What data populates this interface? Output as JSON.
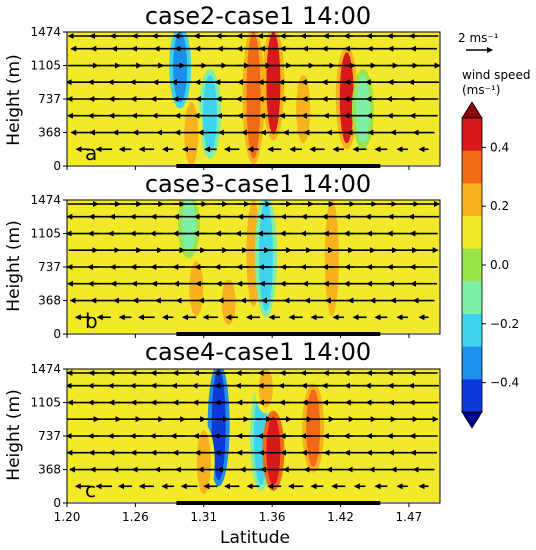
{
  "colors": {
    "background": "#ffffff",
    "arrow": "#000000",
    "levels": [
      "#00008b",
      "#0a3bd9",
      "#1d8fe8",
      "#3ed4f0",
      "#7ef0a8",
      "#9be34a",
      "#f2e92a",
      "#f7b21e",
      "#f06a16",
      "#d7191c",
      "#8b0000"
    ]
  },
  "colorbar": {
    "title_line1": "wind speed",
    "title_line2": "(ms⁻¹)",
    "ticks": [
      "0.4",
      "0.2",
      "0.0",
      "−0.2",
      "−0.4"
    ],
    "tick_values": [
      0.4,
      0.2,
      0.0,
      -0.2,
      -0.4
    ],
    "boundaries": [
      -0.5,
      -0.4,
      -0.3,
      -0.2,
      -0.1,
      0.0,
      0.1,
      0.2,
      0.3,
      0.4,
      0.5
    ],
    "extend": "both"
  },
  "reference_vector": {
    "label": "2 ms⁻¹",
    "magnitude": 2
  },
  "chart_data": [
    {
      "type": "heatmap",
      "title": "case2-case1 14:00",
      "panel_label": "a",
      "xlabel": "",
      "ylabel": "Height (m)",
      "x_ticks": [],
      "y_ticks": [
        "0",
        "368",
        "737",
        "1105",
        "1474"
      ],
      "y_tick_values": [
        0,
        368,
        737,
        1105,
        1474
      ],
      "xlim": [
        1.2,
        1.5
      ],
      "ylim": [
        0,
        1474
      ],
      "background_value": 0.05,
      "features": [
        {
          "center": 1.291,
          "bottom": 700,
          "top": 1474,
          "value": -0.35
        },
        {
          "center": 1.315,
          "bottom": 150,
          "top": 1000,
          "value": -0.3
        },
        {
          "center": 1.35,
          "bottom": 80,
          "top": 1474,
          "value": 0.25
        },
        {
          "center": 1.366,
          "bottom": 350,
          "top": 1474,
          "value": 0.3
        },
        {
          "center": 1.425,
          "bottom": 250,
          "top": 1250,
          "value": 0.3
        },
        {
          "center": 1.438,
          "bottom": 250,
          "top": 1000,
          "value": -0.2
        },
        {
          "center": 1.3,
          "bottom": 0,
          "top": 700,
          "value": 0.15
        },
        {
          "center": 1.39,
          "bottom": 250,
          "top": 1000,
          "value": 0.15
        }
      ],
      "ground_segments": [
        [
          1.288,
          1.452
        ]
      ],
      "vector_rows": [
        {
          "height": 1474,
          "u": [
            -2.2,
            -2.2,
            -2.3,
            -2.2,
            -2.4,
            -2.3,
            -2.5,
            -2.4,
            -2.5,
            -2.6,
            -2.4,
            -2.5,
            -2.3,
            -2.4,
            -2.2,
            -2.3,
            -2.2
          ]
        },
        {
          "height": 1290,
          "u": [
            -1.8,
            -2.0,
            -2.1,
            -2.3,
            -2.1,
            -2.2,
            -2.4,
            -2.2,
            -2.5,
            -2.3,
            -2.4,
            -2.2,
            -2.5,
            -2.3,
            -2.1,
            -2.2,
            -2.0
          ]
        },
        {
          "height": 1105,
          "u": [
            2.3,
            2.4,
            2.4,
            2.5,
            2.5,
            2.6,
            2.4,
            2.6,
            2.6,
            2.5,
            2.7,
            2.6,
            2.5,
            2.4,
            2.5,
            2.3,
            2.4
          ]
        },
        {
          "height": 922,
          "u": [
            -2.5,
            -2.4,
            -2.6,
            -2.5,
            -2.3,
            -2.7,
            -2.4,
            -2.6,
            -2.4,
            -2.5,
            -2.6,
            -2.4,
            -2.5,
            -2.3,
            -2.4,
            -2.2,
            -2.3
          ]
        },
        {
          "height": 737,
          "u": [
            -2.4,
            -2.3,
            -2.5,
            -2.4,
            -2.6,
            -2.5,
            -2.3,
            -2.4,
            -2.6,
            -2.5,
            -2.4,
            -2.3,
            -2.5,
            -2.4,
            -2.3,
            -2.4,
            -2.2
          ]
        },
        {
          "height": 553,
          "u": [
            -2.3,
            -2.4,
            -2.5,
            -2.3,
            -2.4,
            -2.2,
            -2.5,
            -2.3,
            -2.4,
            -2.3,
            -2.5,
            -2.4,
            -2.3,
            -2.4,
            -2.2,
            -2.3,
            -2.1
          ]
        },
        {
          "height": 368,
          "u": [
            -1.8,
            -2.2,
            -1.9,
            -2.1,
            -1.7,
            -2.2,
            -1.9,
            -2.0,
            -1.8,
            -2.1,
            -1.9,
            -2.0,
            -1.8,
            -1.9,
            -2.0,
            -1.8,
            -1.6
          ]
        },
        {
          "height": 184,
          "u": [
            -1.0,
            -1.2,
            -0.9,
            -1.1,
            -0.8,
            -1.0,
            -0.9,
            -1.1,
            -0.8,
            -1.0,
            -0.9,
            -1.1,
            -0.8,
            -1.0,
            -0.9,
            -0.8,
            -0.7
          ]
        }
      ]
    },
    {
      "type": "heatmap",
      "title": "case3-case1 14:00",
      "panel_label": "b",
      "xlabel": "",
      "ylabel": "Height (m)",
      "x_ticks": [],
      "y_ticks": [
        "0",
        "368",
        "737",
        "1105",
        "1474"
      ],
      "y_tick_values": [
        0,
        368,
        737,
        1105,
        1474
      ],
      "xlim": [
        1.2,
        1.5
      ],
      "ylim": [
        0,
        1474
      ],
      "background_value": 0.05,
      "features": [
        {
          "center": 1.298,
          "bottom": 900,
          "top": 1474,
          "value": -0.2
        },
        {
          "center": 1.304,
          "bottom": 200,
          "top": 800,
          "value": 0.15
        },
        {
          "center": 1.35,
          "bottom": 300,
          "top": 1474,
          "value": 0.15
        },
        {
          "center": 1.36,
          "bottom": 250,
          "top": 1474,
          "value": -0.3
        },
        {
          "center": 1.413,
          "bottom": 200,
          "top": 1474,
          "value": 0.15
        },
        {
          "center": 1.33,
          "bottom": 100,
          "top": 600,
          "value": 0.12
        }
      ],
      "ground_segments": [
        [
          1.288,
          1.452
        ]
      ],
      "vector_rows": [
        {
          "height": 1474,
          "u": [
            2.3,
            2.4,
            2.4,
            2.5,
            2.5,
            2.6,
            2.5,
            2.6,
            2.6,
            2.5,
            2.6,
            2.5,
            2.4,
            2.5,
            2.3,
            2.4,
            2.3
          ]
        },
        {
          "height": 1290,
          "u": [
            -2.4,
            -2.3,
            -2.4,
            -2.5,
            -2.6,
            -2.4,
            -2.5,
            -2.6,
            -2.4,
            -2.5,
            -2.3,
            -2.4,
            -2.5,
            -2.3,
            -2.4,
            -2.2,
            -2.3
          ]
        },
        {
          "height": 1105,
          "u": [
            -2.5,
            -2.4,
            -2.6,
            -2.5,
            -2.7,
            -2.5,
            -2.6,
            -2.5,
            -2.7,
            -2.6,
            -2.4,
            -2.5,
            -2.3,
            -2.4,
            -2.2,
            -2.3,
            -2.1
          ]
        },
        {
          "height": 922,
          "u": [
            2.2,
            2.3,
            2.4,
            2.3,
            2.5,
            2.4,
            2.5,
            2.3,
            2.4,
            2.5,
            2.3,
            2.4,
            2.2,
            2.3,
            2.4,
            2.2,
            2.1
          ]
        },
        {
          "height": 737,
          "u": [
            -2.4,
            -2.5,
            -2.3,
            -2.4,
            -2.6,
            -2.5,
            -2.4,
            -2.6,
            -2.5,
            -2.4,
            -2.3,
            -2.5,
            -2.4,
            -2.3,
            -2.2,
            -2.3,
            -2.1
          ]
        },
        {
          "height": 553,
          "u": [
            -2.3,
            -2.4,
            -2.2,
            -2.3,
            -2.5,
            -2.4,
            -2.3,
            -2.4,
            -2.5,
            -2.3,
            -2.4,
            -2.2,
            -2.3,
            -2.4,
            -2.2,
            -2.1,
            -2.0
          ]
        },
        {
          "height": 368,
          "u": [
            -1.9,
            -2.0,
            -1.8,
            -2.1,
            -1.9,
            -2.0,
            -1.8,
            -2.1,
            -1.9,
            -2.0,
            -1.8,
            -1.9,
            -2.0,
            -1.8,
            -1.7,
            -1.8,
            -1.6
          ]
        },
        {
          "height": 184,
          "u": [
            -1.1,
            -1.0,
            -0.9,
            -1.2,
            -0.8,
            -1.0,
            -1.1,
            -0.9,
            -1.0,
            -0.8,
            -1.0,
            -0.9,
            -0.8,
            -1.0,
            -0.9,
            -0.8,
            -0.7
          ]
        }
      ]
    },
    {
      "type": "heatmap",
      "title": "case4-case1 14:00",
      "panel_label": "c",
      "xlabel": "Latitude",
      "ylabel": "Height (m)",
      "x_ticks": [
        "1.20",
        "1.26",
        "1.31",
        "1.36",
        "1.42",
        "1.47"
      ],
      "x_tick_values": [
        1.2,
        1.255,
        1.31,
        1.365,
        1.42,
        1.475
      ],
      "y_ticks": [
        "0",
        "368",
        "737",
        "1105",
        "1474"
      ],
      "y_tick_values": [
        0,
        368,
        737,
        1105,
        1474
      ],
      "xlim": [
        1.2,
        1.5
      ],
      "ylim": [
        0,
        1474
      ],
      "background_value": 0.05,
      "features": [
        {
          "center": 1.322,
          "bottom": 250,
          "top": 1474,
          "value": -0.45
        },
        {
          "center": 1.356,
          "bottom": 200,
          "top": 1250,
          "value": -0.3
        },
        {
          "center": 1.366,
          "bottom": 200,
          "top": 950,
          "value": 0.35
        },
        {
          "center": 1.398,
          "bottom": 400,
          "top": 1250,
          "value": 0.2
        },
        {
          "center": 1.31,
          "bottom": 100,
          "top": 800,
          "value": 0.15
        },
        {
          "center": 1.36,
          "bottom": 1050,
          "top": 1474,
          "value": 0.15
        }
      ],
      "ground_segments": [
        [
          1.288,
          1.452
        ]
      ],
      "vector_rows": [
        {
          "height": 1474,
          "u": [
            -2.4,
            -2.3,
            -2.5,
            -2.4,
            -2.6,
            -2.5,
            -2.6,
            -2.7,
            -2.6,
            -2.5,
            -2.4,
            -2.5,
            -2.3,
            -2.4,
            -2.2,
            -2.3,
            -2.1
          ]
        },
        {
          "height": 1290,
          "u": [
            -2.5,
            -2.4,
            -2.6,
            -2.5,
            -2.6,
            -2.7,
            -2.8,
            -2.6,
            -2.7,
            -2.5,
            -2.6,
            -2.4,
            -2.5,
            -2.3,
            -2.4,
            -2.2,
            -2.3
          ]
        },
        {
          "height": 1105,
          "u": [
            -2.3,
            -2.4,
            -2.5,
            -2.4,
            -2.6,
            -2.5,
            -2.7,
            -2.6,
            -2.5,
            -2.4,
            -2.5,
            -2.3,
            -2.4,
            -2.2,
            -2.3,
            -2.1,
            -2.2
          ]
        },
        {
          "height": 922,
          "u": [
            2.4,
            2.5,
            2.3,
            2.5,
            2.6,
            2.4,
            2.6,
            2.5,
            2.7,
            2.5,
            2.4,
            2.5,
            2.3,
            2.4,
            2.2,
            2.3,
            2.1
          ]
        },
        {
          "height": 737,
          "u": [
            -2.5,
            -2.4,
            -2.6,
            -2.5,
            -2.7,
            -2.8,
            -2.6,
            -2.7,
            -2.5,
            -2.6,
            -2.4,
            -2.5,
            -2.3,
            -2.4,
            -2.2,
            -2.3,
            -2.1
          ]
        },
        {
          "height": 553,
          "u": [
            -2.4,
            -2.3,
            -2.5,
            -2.4,
            -2.6,
            -2.5,
            -2.4,
            -2.6,
            -2.5,
            -2.4,
            -2.3,
            -2.4,
            -2.2,
            -2.3,
            -2.2,
            -2.1,
            -2.0
          ]
        },
        {
          "height": 368,
          "u": [
            -2.0,
            -2.1,
            -1.9,
            -2.2,
            -2.0,
            -2.1,
            -1.9,
            -2.2,
            -2.0,
            -2.1,
            -1.9,
            -2.0,
            -1.8,
            -1.9,
            -1.8,
            -1.7,
            -1.6
          ]
        },
        {
          "height": 184,
          "u": [
            -1.1,
            -1.2,
            -1.0,
            -1.1,
            -0.9,
            -1.2,
            -1.0,
            -1.1,
            -0.9,
            -1.0,
            -1.1,
            -0.9,
            -1.0,
            -0.8,
            -0.9,
            -0.8,
            -0.7
          ]
        }
      ]
    }
  ]
}
